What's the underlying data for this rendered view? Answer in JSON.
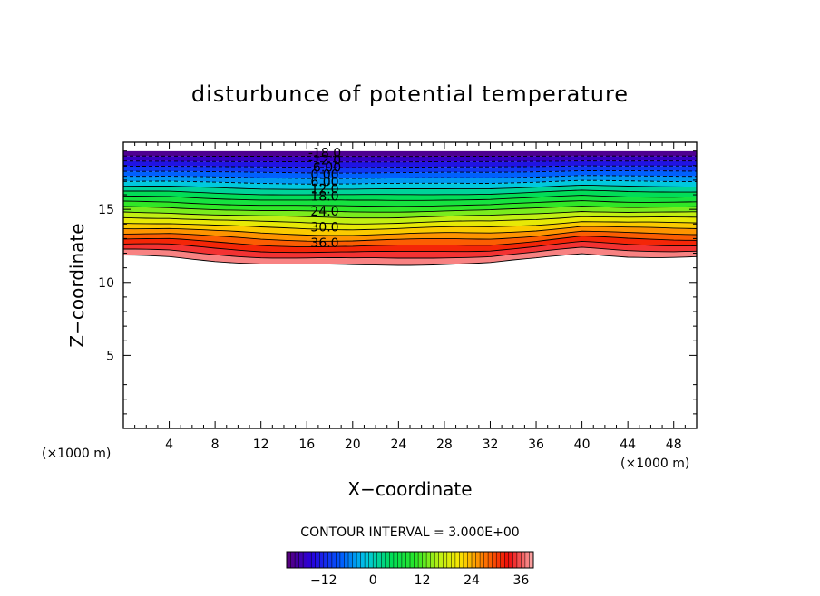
{
  "chart_data": {
    "type": "contour",
    "title": "disturbunce of potential temperature",
    "xlabel": "X−coordinate",
    "ylabel": "Z−coordinate",
    "x_unit": "(×1000 m)",
    "y_unit": "(×1000 m)",
    "xlim": [
      0,
      50
    ],
    "ylim": [
      0,
      19.6
    ],
    "x_ticks": [
      4,
      8,
      12,
      16,
      20,
      24,
      28,
      32,
      36,
      40,
      44,
      48
    ],
    "y_ticks": [
      5,
      10,
      15
    ],
    "contour_interval_text": "CONTOUR INTERVAL = 3.000E+00",
    "contour_interval": 3,
    "level_min": -21,
    "level_max": 39,
    "contour_labels": [
      {
        "text": "-18.0",
        "z": 18.9
      },
      {
        "text": "-12.0",
        "z": 18.4
      },
      {
        "text": "-6.00",
        "z": 17.9
      },
      {
        "text": "0.00",
        "z": 17.4
      },
      {
        "text": "6.00",
        "z": 16.9
      },
      {
        "text": "12.0",
        "z": 16.4
      },
      {
        "text": "18.0",
        "z": 15.9
      },
      {
        "text": "24.0",
        "z": 14.9
      },
      {
        "text": "30.0",
        "z": 13.8
      },
      {
        "text": "36.0",
        "z": 12.7
      }
    ],
    "surface_bottom_profile": {
      "x": [
        0,
        4,
        8,
        12,
        16,
        20,
        24,
        28,
        32,
        36,
        40,
        44,
        48,
        50
      ],
      "z": [
        11.8,
        11.75,
        11.5,
        11.3,
        11.2,
        11.15,
        11.2,
        11.3,
        11.35,
        11.6,
        11.95,
        11.8,
        11.75,
        11.75
      ]
    },
    "colorbar_ticks": [
      -12,
      0,
      12,
      24,
      36
    ]
  }
}
